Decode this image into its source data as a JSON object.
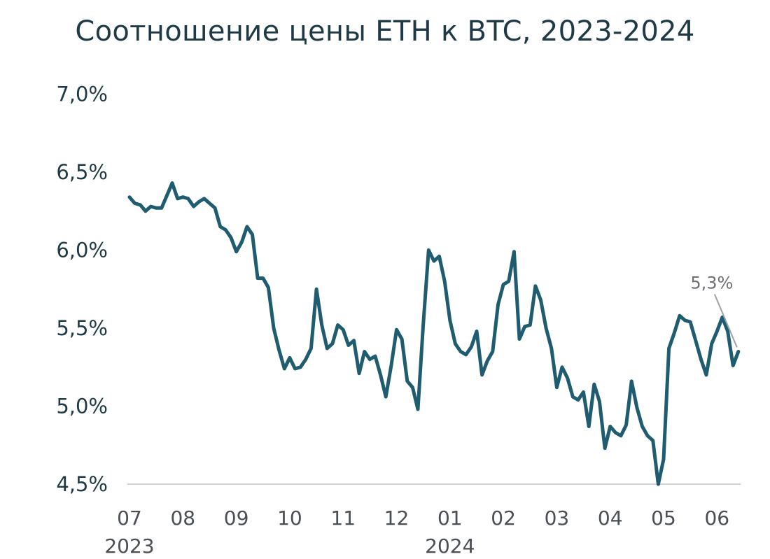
{
  "chart_data": {
    "type": "line",
    "title": "Соотношение цены ETH к BTC, 2023-2024",
    "xlabel": "",
    "ylabel": "",
    "y_tick_labels": [
      "4,5%",
      "5,0%",
      "5,5%",
      "6,0%",
      "6,5%",
      "7,0%"
    ],
    "ylim": [
      4.5,
      7.0
    ],
    "x_tick_labels": [
      "07",
      "08",
      "09",
      "10",
      "11",
      "12",
      "01",
      "02",
      "03",
      "04",
      "05",
      "06"
    ],
    "year_labels": [
      "2023",
      "2024"
    ],
    "grid": false,
    "line_color": "#1f5c70",
    "annotation": {
      "text": "5,3%",
      "color": "#a0a4a8"
    },
    "x_month_index": [
      0.0,
      0.1,
      0.2,
      0.3,
      0.4,
      0.5,
      0.6,
      0.7,
      0.8,
      0.9,
      1.0,
      1.1,
      1.2,
      1.3,
      1.4,
      1.5,
      1.6,
      1.7,
      1.8,
      1.9,
      2.0,
      2.1,
      2.2,
      2.3,
      2.4,
      2.5,
      2.6,
      2.7,
      2.8,
      2.9,
      3.0,
      3.1,
      3.2,
      3.3,
      3.4,
      3.5,
      3.6,
      3.7,
      3.8,
      3.9,
      4.0,
      4.1,
      4.2,
      4.3,
      4.4,
      4.5,
      4.6,
      4.7,
      4.8,
      4.9,
      5.0,
      5.1,
      5.2,
      5.3,
      5.4,
      5.5,
      5.6,
      5.7,
      5.8,
      5.9,
      6.0,
      6.1,
      6.2,
      6.3,
      6.4,
      6.5,
      6.6,
      6.7,
      6.8,
      6.9,
      7.0,
      7.1,
      7.2,
      7.3,
      7.4,
      7.5,
      7.6,
      7.7,
      7.8,
      7.9,
      8.0,
      8.1,
      8.2,
      8.3,
      8.4,
      8.5,
      8.6,
      8.7,
      8.8,
      8.9,
      9.0,
      9.1,
      9.2,
      9.3,
      9.4,
      9.5,
      9.6,
      9.7,
      9.8,
      9.9,
      10.0,
      10.1,
      10.2,
      10.3,
      10.4,
      10.5,
      10.6,
      10.7,
      10.8,
      10.9,
      11.0,
      11.1,
      11.2,
      11.3,
      11.4
    ],
    "values": [
      6.34,
      6.3,
      6.29,
      6.25,
      6.28,
      6.27,
      6.27,
      6.35,
      6.43,
      6.33,
      6.34,
      6.33,
      6.28,
      6.31,
      6.33,
      6.3,
      6.27,
      6.15,
      6.13,
      6.08,
      5.99,
      6.05,
      6.15,
      6.1,
      5.82,
      5.82,
      5.76,
      5.5,
      5.36,
      5.24,
      5.31,
      5.24,
      5.25,
      5.3,
      5.37,
      5.75,
      5.52,
      5.37,
      5.4,
      5.52,
      5.49,
      5.39,
      5.42,
      5.21,
      5.35,
      5.3,
      5.32,
      5.2,
      5.06,
      5.26,
      5.49,
      5.43,
      5.16,
      5.12,
      4.98,
      5.52,
      6.0,
      5.93,
      5.96,
      5.8,
      5.55,
      5.4,
      5.35,
      5.33,
      5.38,
      5.48,
      5.2,
      5.29,
      5.35,
      5.65,
      5.78,
      5.8,
      5.99,
      5.43,
      5.51,
      5.52,
      5.77,
      5.68,
      5.5,
      5.37,
      5.12,
      5.25,
      5.18,
      5.06,
      5.04,
      5.09,
      4.87,
      5.14,
      5.03,
      4.73,
      4.87,
      4.83,
      4.81,
      4.88,
      5.16,
      4.99,
      4.87,
      4.81,
      4.78,
      4.5,
      4.66,
      5.37,
      5.47,
      5.58,
      5.55,
      5.54,
      5.42,
      5.3,
      5.2,
      5.4,
      5.48,
      5.57,
      5.48,
      5.26,
      5.35
    ]
  }
}
